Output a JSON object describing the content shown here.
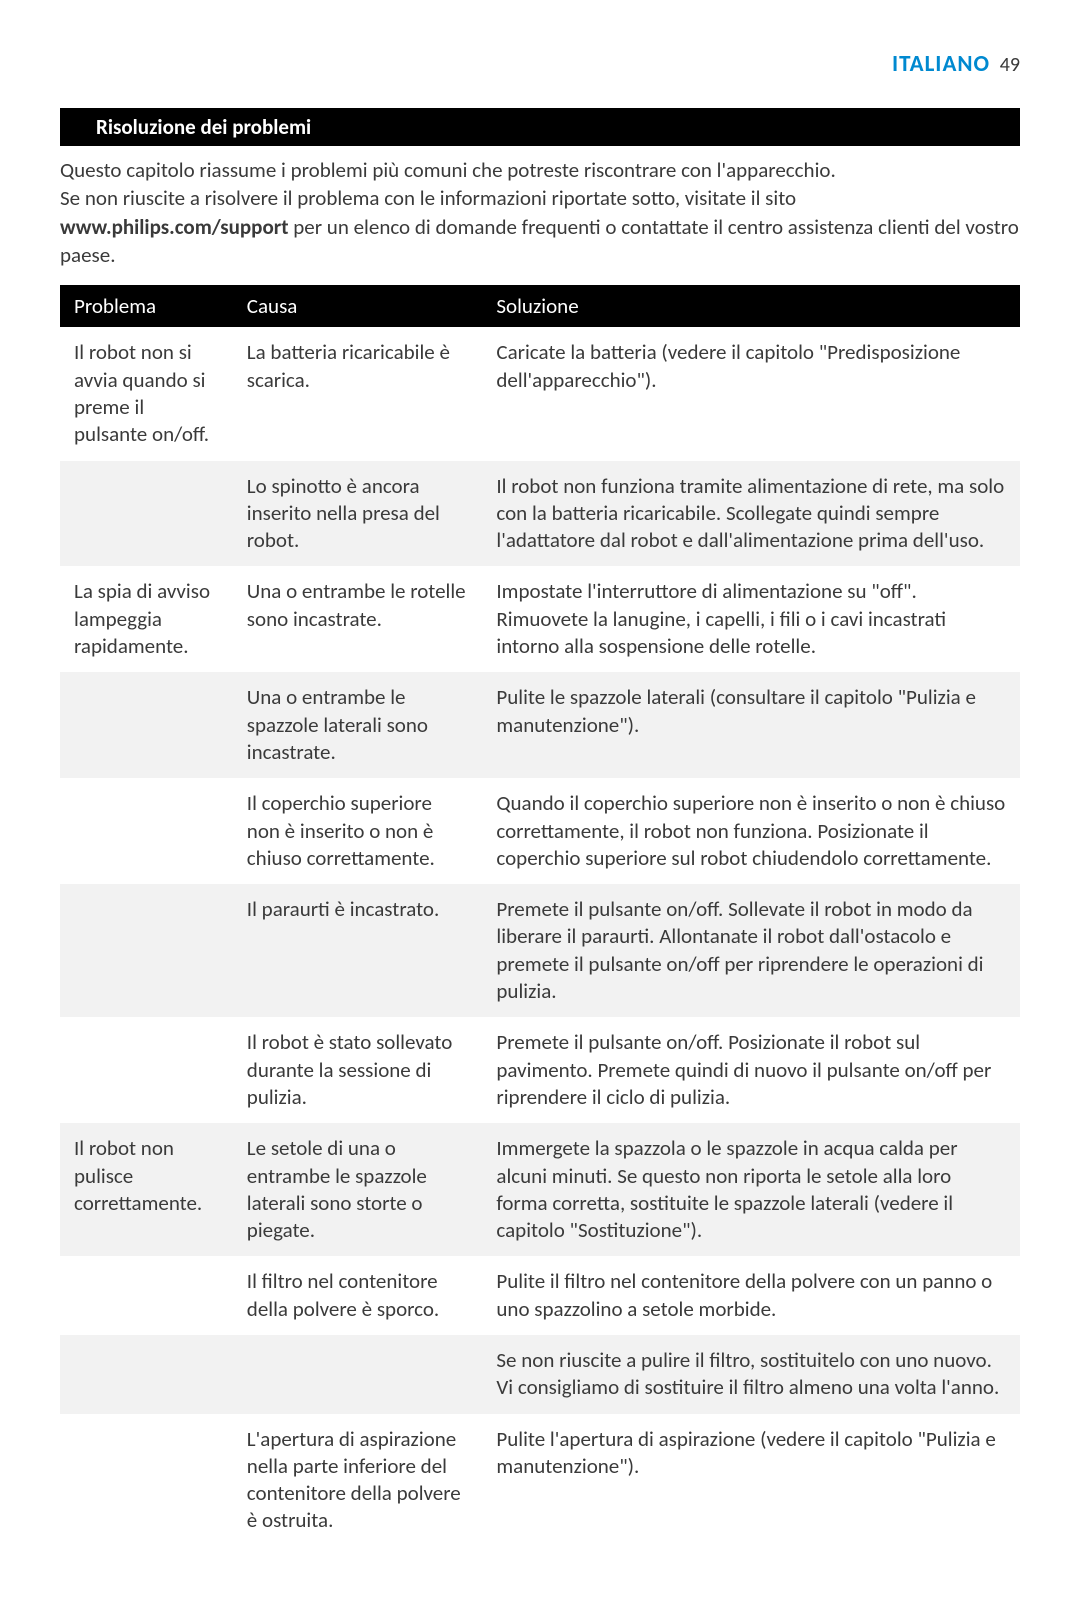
{
  "header": {
    "language": "ITALIANO",
    "page_number": "49"
  },
  "section_title": "Risoluzione dei problemi",
  "intro": {
    "line1": "Questo capitolo riassume i problemi più comuni che potreste riscontrare con l'apparecchio.",
    "line2": "Se non riuscite a risolvere il problema con le informazioni riportate sotto, visitate il sito",
    "bold_url": "www.philips.com/support",
    "line3_rest": " per un elenco di domande frequenti o contattate il centro assistenza clienti del vostro paese."
  },
  "table": {
    "headers": {
      "col1": "Problema",
      "col2": "Causa",
      "col3": "Soluzione"
    },
    "rows": [
      {
        "shade": false,
        "problema": "Il robot non si avvia quando si preme il pulsante on/off.",
        "causa": "La batteria ricaricabile è scarica.",
        "soluzione": "Caricate la batteria (vedere il capitolo \"Predisposizione dell'apparecchio\")."
      },
      {
        "shade": true,
        "problema": "",
        "causa": "Lo spinotto è ancora inserito nella presa del robot.",
        "soluzione": "Il robot non funziona tramite alimentazione di rete, ma solo con la batteria ricaricabile. Scollegate quindi sempre l'adattatore dal robot e dall'alimentazione prima dell'uso."
      },
      {
        "shade": false,
        "problema": "La spia di avviso lampeggia rapidamente.",
        "causa": "Una o entrambe le rotelle sono incastrate.",
        "soluzione": "Impostate l'interruttore di alimentazione su \"off\". Rimuovete la lanugine, i capelli, i fili o i cavi incastrati intorno alla sospensione delle rotelle."
      },
      {
        "shade": true,
        "problema": "",
        "causa": "Una o entrambe le spazzole laterali sono incastrate.",
        "soluzione": "Pulite le spazzole laterali (consultare il capitolo \"Pulizia e manutenzione\")."
      },
      {
        "shade": false,
        "problema": "",
        "causa": "Il coperchio superiore non è inserito o non è chiuso correttamente.",
        "soluzione": "Quando il coperchio superiore non è inserito o non è chiuso correttamente, il robot non funziona. Posizionate il coperchio superiore sul robot chiudendolo correttamente."
      },
      {
        "shade": true,
        "problema": "",
        "causa": "Il paraurti è incastrato.",
        "soluzione": "Premete il pulsante on/off. Sollevate il robot in modo da liberare il paraurti. Allontanate il robot dall'ostacolo e premete il pulsante on/off per riprendere le operazioni di pulizia."
      },
      {
        "shade": false,
        "problema": "",
        "causa": "Il robot è stato sollevato durante la sessione di pulizia.",
        "soluzione": "Premete il pulsante on/off. Posizionate il robot sul pavimento. Premete quindi di nuovo il pulsante on/off per riprendere il ciclo di pulizia."
      },
      {
        "shade": true,
        "problema": "Il robot non pulisce correttamente.",
        "causa": "Le setole di una o entrambe le spazzole laterali sono storte o piegate.",
        "soluzione": "Immergete la spazzola o le spazzole in acqua calda per alcuni minuti. Se questo non riporta le setole alla loro forma corretta, sostituite le spazzole laterali (vedere il capitolo \"Sostituzione\")."
      },
      {
        "shade": false,
        "problema": "",
        "causa": "Il filtro nel contenitore della polvere è sporco.",
        "soluzione": "Pulite il filtro nel contenitore della polvere con un panno o uno spazzolino a setole morbide."
      },
      {
        "shade": true,
        "problema": "",
        "causa": "",
        "soluzione": "Se non riuscite a pulire il filtro, sostituitelo con uno nuovo. Vi consigliamo di sostituire il filtro almeno una volta l'anno."
      },
      {
        "shade": false,
        "problema": "",
        "causa": "L'apertura di aspirazione nella parte inferiore del contenitore della polvere è ostruita.",
        "soluzione": "Pulite l'apertura di aspirazione (vedere il capitolo \"Pulizia e manutenzione\")."
      }
    ]
  },
  "colors": {
    "accent_blue": "#0089d0",
    "text": "#3a3a3a",
    "bar_bg": "#000000",
    "bar_fg": "#ffffff",
    "row_shade": "#f2f2f2",
    "page_bg": "#ffffff"
  }
}
